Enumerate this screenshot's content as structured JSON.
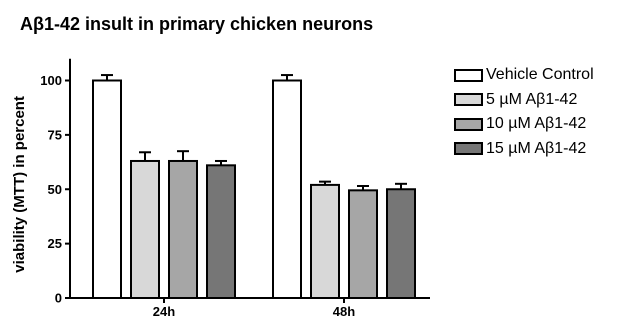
{
  "chart_data": {
    "type": "bar",
    "title": "Aβ1-42 insult in primary chicken neurons",
    "xlabel": "",
    "ylabel": "viability (MTT) in percent",
    "ylim": [
      0,
      110
    ],
    "yticks": [
      0,
      25,
      50,
      75,
      100
    ],
    "categories": [
      "24h",
      "48h"
    ],
    "series": [
      {
        "name": "Vehicle Control",
        "values": [
          100,
          100
        ],
        "errors": [
          2.5,
          2.5
        ],
        "color": "#ffffff"
      },
      {
        "name": "5 µM Aβ1-42",
        "values": [
          63,
          52
        ],
        "errors": [
          4,
          1.5
        ],
        "color": "#d8d8d8"
      },
      {
        "name": "10 µM Aβ1-42",
        "values": [
          63,
          49.5
        ],
        "errors": [
          4.5,
          2
        ],
        "color": "#a6a6a6"
      },
      {
        "name": "15 µM Aβ1-42",
        "values": [
          61,
          50
        ],
        "errors": [
          2,
          2.5
        ],
        "color": "#767676"
      }
    ],
    "legend_position": "right",
    "grid": false
  }
}
